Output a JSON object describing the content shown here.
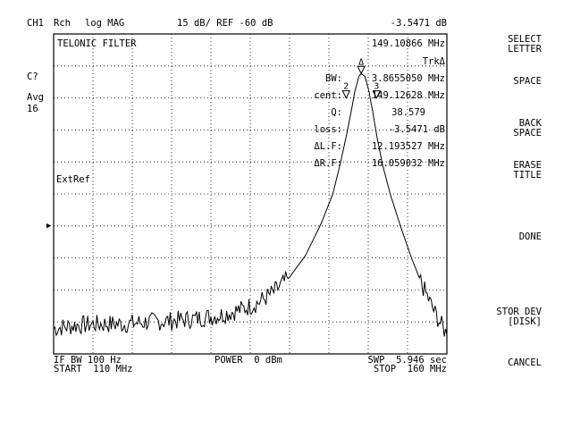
{
  "header": {
    "channel": "CH1",
    "measurement": "Rch",
    "format": "log MAG",
    "scale_ref": "15 dB/ REF -60 dB",
    "marker_value": "-3.5471 dB"
  },
  "left_annotations": {
    "cal": "C?",
    "avg_label": "Avg",
    "avg_factor": "16"
  },
  "plot": {
    "title": "TELONIC FILTER",
    "ext_ref": "ExtRef",
    "marker_freq": "149.10866 MHz",
    "tracking": "TrkΔ",
    "stats": [
      {
        "label": "BW:",
        "value": "3.8655050 MHz"
      },
      {
        "label": "cent:",
        "value": "149.12628 MHz"
      },
      {
        "label": "Q:",
        "value": "38.579"
      },
      {
        "label": "loss:",
        "value": "-3.5471 dB"
      },
      {
        "label": "ΔL.F:",
        "value": "12.193527 MHz"
      },
      {
        "label": "ΔR.F:",
        "value": "16.059032 MHz"
      }
    ],
    "markers": [
      {
        "id": "Δ",
        "freq_mhz": 149.109,
        "level_db": -3.55
      },
      {
        "id": "2",
        "freq_mhz": 147.19,
        "level_db": -15.0
      },
      {
        "id": "3",
        "freq_mhz": 151.06,
        "level_db": -15.0
      }
    ]
  },
  "chart_data": {
    "type": "line",
    "x_start_mhz": 110,
    "x_stop_mhz": 160,
    "ref_level_db": -60,
    "scale_db_per_div": 15,
    "divisions_x": 10,
    "divisions_y": 10,
    "ylim_db": [
      -135,
      15
    ],
    "trace_points": [
      [
        110,
        -123
      ],
      [
        113,
        -121.5
      ],
      [
        116,
        -121
      ],
      [
        119,
        -121
      ],
      [
        122,
        -120
      ],
      [
        125,
        -119.5
      ],
      [
        128,
        -118.5
      ],
      [
        131,
        -117
      ],
      [
        134,
        -114
      ],
      [
        136,
        -111
      ],
      [
        138,
        -106
      ],
      [
        140,
        -99
      ],
      [
        142,
        -89
      ],
      [
        144,
        -74
      ],
      [
        145.5,
        -60
      ],
      [
        146.5,
        -45
      ],
      [
        147.2,
        -33
      ],
      [
        147.8,
        -22
      ],
      [
        148.3,
        -12
      ],
      [
        148.8,
        -5
      ],
      [
        149.1,
        -3.55
      ],
      [
        149.6,
        -5
      ],
      [
        150.1,
        -12
      ],
      [
        150.6,
        -22
      ],
      [
        151.1,
        -33
      ],
      [
        151.8,
        -46
      ],
      [
        152.8,
        -60
      ],
      [
        154,
        -74
      ],
      [
        155.5,
        -90
      ],
      [
        157,
        -104
      ],
      [
        158.5,
        -116
      ],
      [
        160,
        -126
      ]
    ]
  },
  "footer": {
    "if_bw": "IF BW 100 Hz",
    "power": "POWER  0 dBm",
    "sweep": "SWP  5.946 sec",
    "start": "START  110 MHz",
    "stop": "STOP  160 MHz"
  },
  "softkeys": [
    "SELECT\nLETTER",
    "SPACE",
    "BACK\nSPACE",
    "ERASE\nTITLE",
    "DONE",
    "STOR DEV\n[DISK]",
    "CANCEL"
  ],
  "colors": {
    "background": "#ffffff",
    "foreground": "#000000"
  }
}
